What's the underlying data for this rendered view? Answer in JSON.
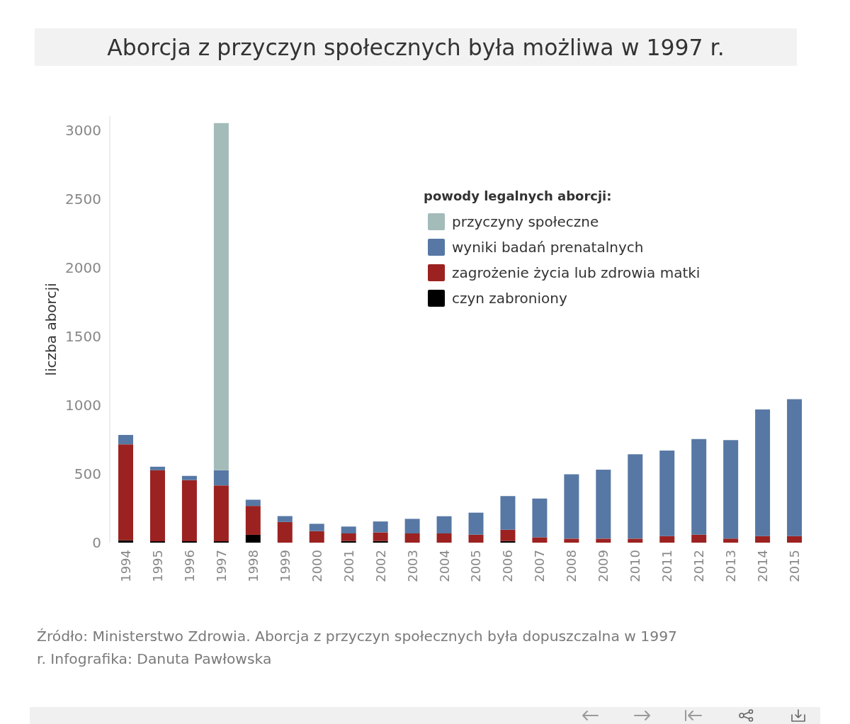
{
  "chart_data": {
    "type": "bar",
    "title": "Aborcja z przyczyn społecznych była możliwa w 1997 r.",
    "ylabel": "liczba aborcji",
    "legend_title": "powody legalnych aborcji:",
    "annotations": [
      "Źródło: Ministerstwo Zdrowia. Aborcja z przyczyn społecznych była dopuszczalna w 1997 r. Infografika: Danuta Pawłowska"
    ],
    "categories": [
      "1994",
      "1995",
      "1996",
      "1997",
      "1998",
      "1999",
      "2000",
      "2001",
      "2002",
      "2003",
      "2004",
      "2005",
      "2006",
      "2007",
      "2008",
      "2009",
      "2010",
      "2011",
      "2012",
      "2013",
      "2014",
      "2015"
    ],
    "stacked": true,
    "series": [
      {
        "name": "czyn zabroniony",
        "color": "#000000",
        "values": [
          17,
          10,
          10,
          10,
          57,
          0,
          0,
          12,
          12,
          0,
          0,
          0,
          12,
          0,
          0,
          0,
          0,
          0,
          0,
          0,
          0,
          0
        ]
      },
      {
        "name": "zagrożenie życia lub zdrowia matki",
        "color": "#9b2220",
        "values": [
          698,
          516,
          444,
          406,
          210,
          150,
          84,
          55,
          63,
          67,
          67,
          58,
          82,
          39,
          29,
          29,
          29,
          48,
          58,
          29,
          48,
          48
        ]
      },
      {
        "name": "wyniki badań prenatalnych",
        "color": "#5778a4",
        "values": [
          68,
          26,
          31,
          110,
          45,
          43,
          53,
          50,
          79,
          106,
          125,
          160,
          244,
          282,
          468,
          502,
          614,
          622,
          695,
          717,
          920,
          995
        ]
      },
      {
        "name": "przyczyny społeczne",
        "color": "#a3bbb9",
        "values": [
          0,
          0,
          0,
          2524,
          0,
          0,
          0,
          0,
          0,
          0,
          0,
          0,
          0,
          0,
          0,
          0,
          0,
          0,
          0,
          0,
          0,
          0
        ]
      }
    ],
    "ylim": [
      0,
      3100
    ],
    "yticks": [
      0,
      500,
      1000,
      1500,
      2000,
      2500,
      3000
    ],
    "legend": "top right"
  }
}
